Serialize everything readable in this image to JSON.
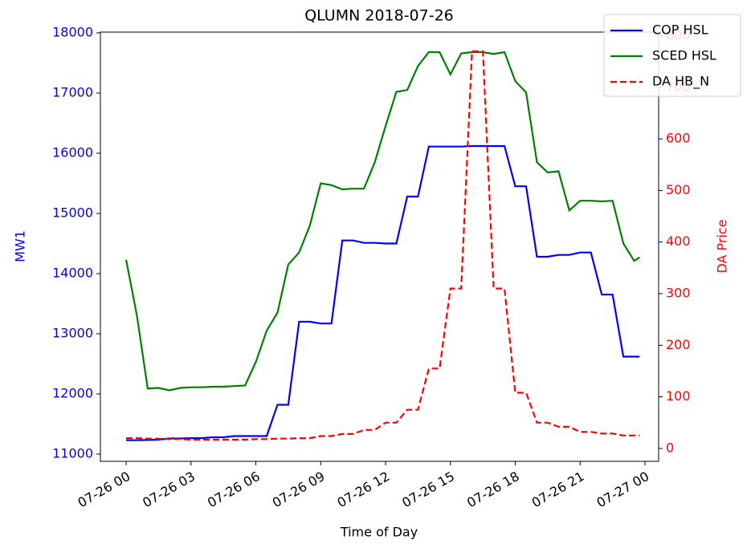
{
  "chart_data": {
    "type": "line",
    "title": "QLUMN 2018-07-26",
    "xlabel": "Time of Day",
    "ylabel": "MW1",
    "y2label": "DA Price",
    "x": [
      0,
      0.5,
      1,
      1.5,
      2,
      2.5,
      3,
      3.5,
      4,
      4.5,
      5,
      5.5,
      6,
      6.5,
      7,
      7.5,
      8,
      8.5,
      9,
      9.5,
      10,
      10.5,
      11,
      11.5,
      12,
      12.5,
      13,
      13.5,
      14,
      14.5,
      15,
      15.5,
      16,
      16.5,
      17,
      17.5,
      18,
      18.5,
      19,
      19.5,
      20,
      20.5,
      21,
      21.5,
      22,
      22.5,
      23,
      23.5,
      23.75
    ],
    "series": [
      {
        "name": "COP HSL",
        "color": "#0000ff",
        "dash": "solid",
        "axis": "y",
        "values": [
          11230,
          11230,
          11235,
          11240,
          11260,
          11260,
          11265,
          11265,
          11280,
          11280,
          11300,
          11300,
          11300,
          11300,
          11820,
          11820,
          13200,
          13200,
          13170,
          13170,
          14550,
          14550,
          14510,
          14510,
          14500,
          14500,
          15280,
          15280,
          16110,
          16110,
          16110,
          16110,
          16120,
          16120,
          16120,
          16120,
          15450,
          15450,
          14280,
          14280,
          14310,
          14310,
          14350,
          14350,
          13650,
          13650,
          12620,
          12620,
          12620
        ]
      },
      {
        "name": "SCED HSL",
        "color": "#008000",
        "dash": "solid",
        "axis": "y",
        "values": [
          14230,
          13300,
          12090,
          12100,
          12060,
          12100,
          12110,
          12110,
          12120,
          12120,
          12130,
          12140,
          12530,
          13050,
          13350,
          14150,
          14350,
          14800,
          15500,
          15470,
          15400,
          15410,
          15410,
          15850,
          16450,
          17020,
          17050,
          17450,
          17680,
          17680,
          17310,
          17660,
          17680,
          17680,
          17650,
          17680,
          17200,
          17010,
          15850,
          15680,
          15700,
          15050,
          15210,
          15210,
          15200,
          15210,
          14500,
          14210,
          14270
        ]
      },
      {
        "name": "DA HB_N",
        "color": "#ff0000",
        "dash": "dashed",
        "axis": "y2",
        "values": [
          20,
          20,
          19,
          19,
          18,
          18,
          17,
          17,
          17,
          17,
          17,
          17,
          18,
          18,
          19,
          19,
          20,
          20,
          24,
          24,
          28,
          28,
          36,
          36,
          50,
          50,
          75,
          75,
          155,
          155,
          310,
          310,
          770,
          770,
          310,
          310,
          108,
          108,
          50,
          50,
          42,
          42,
          32,
          32,
          29,
          29,
          25,
          25,
          25
        ]
      }
    ],
    "xlim": [
      -1.19,
      24.63
    ],
    "xticks": [
      {
        "value": 0,
        "label": "07-26 00"
      },
      {
        "value": 3,
        "label": "07-26 03"
      },
      {
        "value": 6,
        "label": "07-26 06"
      },
      {
        "value": 9,
        "label": "07-26 09"
      },
      {
        "value": 12,
        "label": "07-26 12"
      },
      {
        "value": 15,
        "label": "07-26 15"
      },
      {
        "value": 18,
        "label": "07-26 18"
      },
      {
        "value": 21,
        "label": "07-26 21"
      },
      {
        "value": 24,
        "label": "07-27 00"
      }
    ],
    "ylim": [
      10880,
      18013
    ],
    "yticks": [
      11000,
      12000,
      13000,
      14000,
      15000,
      16000,
      17000,
      18000
    ],
    "y2lim": [
      -25,
      807
    ],
    "y2ticks": [
      0,
      100,
      200,
      300,
      400,
      500,
      600,
      700,
      800
    ],
    "ycolor": "#0000ff",
    "y2color": "#ff0000",
    "legend": "upper right"
  }
}
